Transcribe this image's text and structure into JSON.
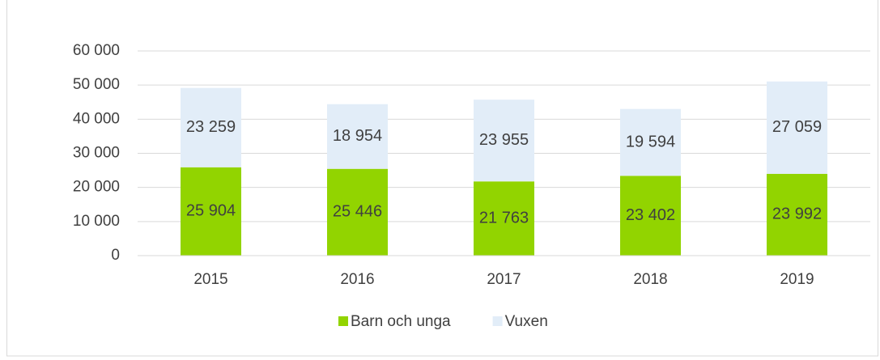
{
  "chart_data": {
    "type": "stacked_bar",
    "categories": [
      "2015",
      "2016",
      "2017",
      "2018",
      "2019"
    ],
    "series": [
      {
        "name": "Barn och unga",
        "color": "#92d400",
        "values": [
          25904,
          25446,
          21763,
          23402,
          23992
        ],
        "value_labels": [
          "25 904",
          "25 446",
          "21 763",
          "23 402",
          "23 992"
        ]
      },
      {
        "name": "Vuxen",
        "color": "#e2edf8",
        "values": [
          23259,
          18954,
          23955,
          19594,
          27059
        ],
        "value_labels": [
          "23 259",
          "18 954",
          "23 955",
          "19 594",
          "27 059"
        ]
      }
    ],
    "ylim": [
      0,
      60000
    ],
    "yticks": [
      {
        "value": 0,
        "label": "0"
      },
      {
        "value": 10000,
        "label": "10 000"
      },
      {
        "value": 20000,
        "label": "20 000"
      },
      {
        "value": 30000,
        "label": "30 000"
      },
      {
        "value": 40000,
        "label": "40 000"
      },
      {
        "value": 50000,
        "label": "50 000"
      },
      {
        "value": 60000,
        "label": "60 000"
      }
    ],
    "grid": true,
    "legend": "bottom"
  }
}
